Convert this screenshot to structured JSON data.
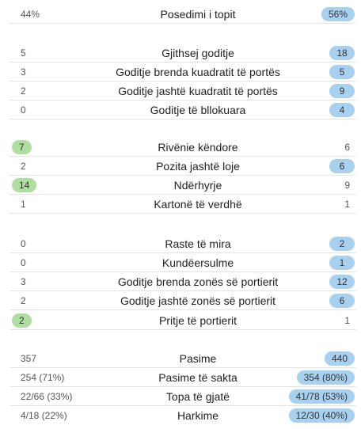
{
  "rows": [
    {
      "label": "Posedimi i topit",
      "left": "44%",
      "right": "56%"
    },
    {
      "label": "Gjithsej goditje",
      "left": "5",
      "right": "18"
    },
    {
      "label": "Goditje brenda kuadratit të portës",
      "left": "3",
      "right": "5"
    },
    {
      "label": "Goditje jashtë kuadratit të portës",
      "left": "2",
      "right": "9"
    },
    {
      "label": "Goditje të bllokuara",
      "left": "0",
      "right": "4"
    },
    {
      "label": "Rivënie këndore",
      "left": "7",
      "right": "6"
    },
    {
      "label": "Pozita jashtë loje",
      "left": "2",
      "right": "6"
    },
    {
      "label": "Ndërhyrje",
      "left": "14",
      "right": "9"
    },
    {
      "label": "Kartonë të verdhë",
      "left": "1",
      "right": "1"
    },
    {
      "label": "Raste të mira",
      "left": "0",
      "right": "2"
    },
    {
      "label": "Kundëersulme",
      "left": "0",
      "right": "1"
    },
    {
      "label": "Goditje brenda zonës së portierit",
      "left": "3",
      "right": "12"
    },
    {
      "label": "Goditje jashtë zonës së portierit",
      "left": "2",
      "right": "6"
    },
    {
      "label": "Pritje të portierit",
      "left": "2",
      "right": "1"
    },
    {
      "label": "Pasime",
      "left": "357",
      "right": "440"
    },
    {
      "label": "Pasime të sakta",
      "left": "254 (71%)",
      "right": "354 (80%)"
    },
    {
      "label": "Topa të gjatë",
      "left": "22/66 (33%)",
      "right": "41/78 (53%)"
    },
    {
      "label": "Harkime",
      "left": "4/18 (22%)",
      "right": "12/30 (40%)"
    }
  ],
  "colors": {
    "left_highlight": "#aedfa0",
    "right_highlight": "#a8d1f0"
  }
}
